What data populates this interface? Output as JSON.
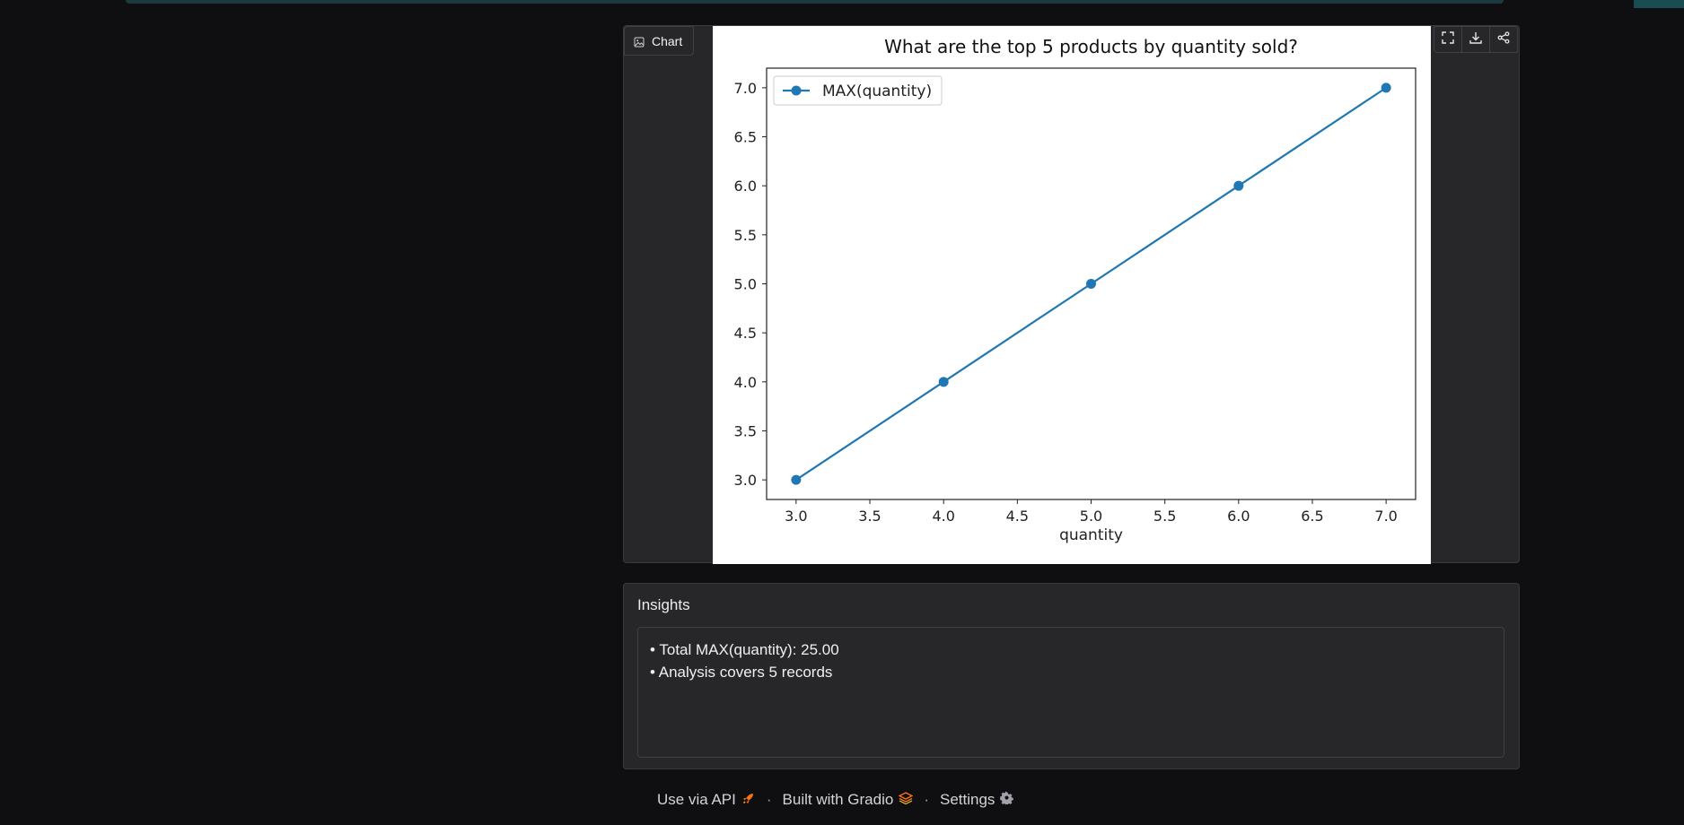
{
  "chart_panel": {
    "label": "Chart",
    "toolbar_icons": [
      "fullscreen-icon",
      "download-icon",
      "share-icon"
    ]
  },
  "chart_data": {
    "type": "line",
    "title": "What are the top 5 products by quantity sold?",
    "xlabel": "quantity",
    "ylabel": "",
    "x": [
      3.0,
      4.0,
      5.0,
      6.0,
      7.0
    ],
    "series": [
      {
        "name": "MAX(quantity)",
        "values": [
          3.0,
          4.0,
          5.0,
          6.0,
          7.0
        ],
        "color": "#1f77b4",
        "marker": "circle"
      }
    ],
    "xticks": [
      "3.0",
      "3.5",
      "4.0",
      "4.5",
      "5.0",
      "5.5",
      "6.0",
      "6.5",
      "7.0"
    ],
    "yticks": [
      "3.0",
      "3.5",
      "4.0",
      "4.5",
      "5.0",
      "5.5",
      "6.0",
      "6.5",
      "7.0"
    ],
    "xlim": [
      2.8,
      7.2
    ],
    "ylim": [
      2.8,
      7.2
    ],
    "grid": false,
    "legend": "upper-left"
  },
  "insights": {
    "title": "Insights",
    "lines": [
      "• Total MAX(quantity): 25.00",
      "• Analysis covers 5 records"
    ]
  },
  "footer": {
    "api_label": "Use via API",
    "built_label": "Built with Gradio",
    "settings_label": "Settings",
    "separator": "·",
    "accent": "#f97316"
  }
}
